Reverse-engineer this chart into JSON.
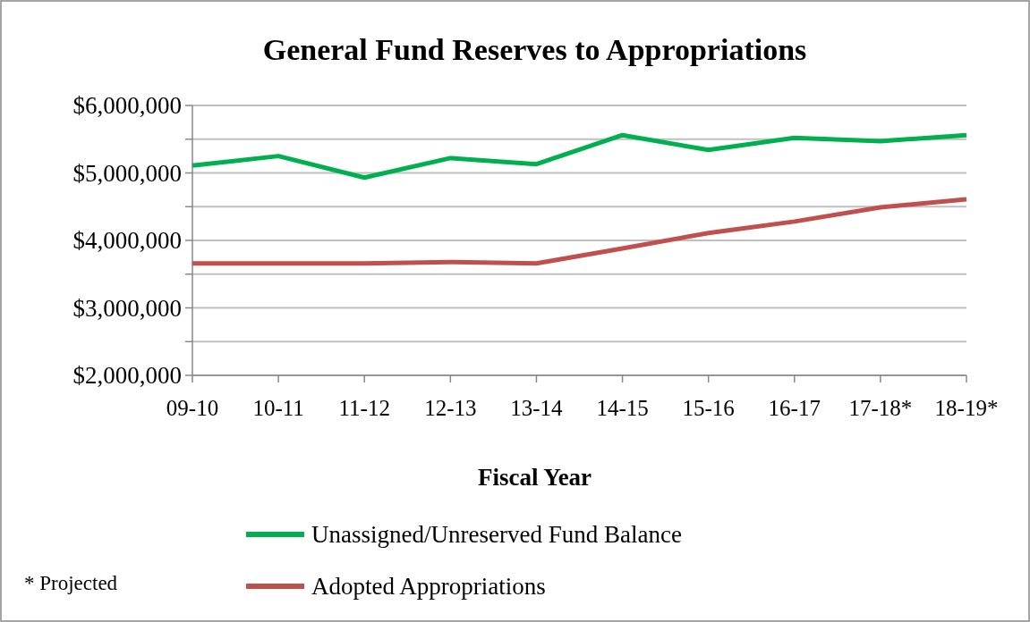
{
  "chart_data": {
    "type": "line",
    "title": "General Fund Reserves to Appropriations",
    "xlabel": "Fiscal Year",
    "categories": [
      "09-10",
      "10-11",
      "11-12",
      "12-13",
      "13-14",
      "14-15",
      "15-16",
      "16-17",
      "17-18*",
      "18-19*"
    ],
    "series": [
      {
        "name": "Unassigned/Unreserved Fund Balance",
        "color": "#00b050",
        "values": [
          5110000,
          5250000,
          4930000,
          5220000,
          5130000,
          5560000,
          5340000,
          5520000,
          5470000,
          5560000
        ]
      },
      {
        "name": "Adopted Appropriations",
        "color": "#c0504d",
        "values": [
          3660000,
          3660000,
          3660000,
          3680000,
          3660000,
          3880000,
          4110000,
          4280000,
          4490000,
          4610000
        ]
      }
    ],
    "ylim": [
      2000000,
      6000000
    ],
    "yticks": [
      {
        "value": 2000000,
        "label": "$2,000,000"
      },
      {
        "value": 2500000,
        "label": null
      },
      {
        "value": 3000000,
        "label": "$3,000,000"
      },
      {
        "value": 3500000,
        "label": null
      },
      {
        "value": 4000000,
        "label": "$4,000,000"
      },
      {
        "value": 4500000,
        "label": null
      },
      {
        "value": 5000000,
        "label": "$5,000,000"
      },
      {
        "value": 5500000,
        "label": null
      },
      {
        "value": 6000000,
        "label": "$6,000,000"
      }
    ],
    "grid": "y",
    "legend": "bottom",
    "marker": "none",
    "line_style": "solid",
    "annotations": [
      "* Projected"
    ]
  }
}
